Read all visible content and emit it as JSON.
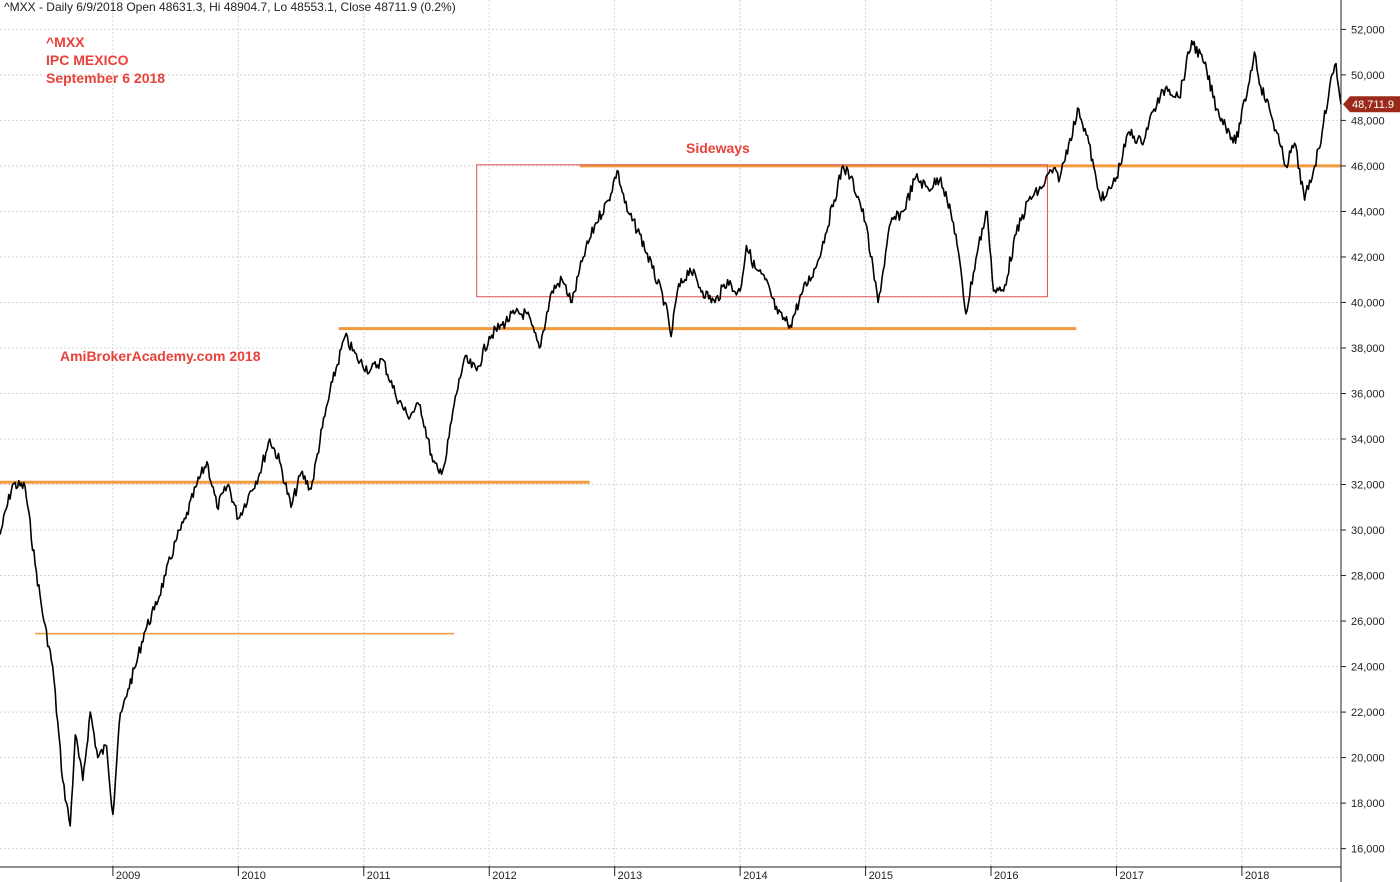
{
  "header": {
    "text": "^MXX - Daily 6/9/2018 Open 48631.3, Hi 48904.7, Lo 48553.1, Close 48711.9 (0.2%)"
  },
  "annotations": {
    "symbol": "^MXX",
    "name": "IPC MEXICO",
    "date": "September 6 2018",
    "watermark": "AmiBrokerAcademy.com  2018",
    "sideways": "Sideways"
  },
  "colors": {
    "price": "#000000",
    "support": "#f29a3c",
    "box": "#e05050",
    "annotation": "#e8413a",
    "grid": "#d4d4d4",
    "badge": "#9b2a1a"
  },
  "chart_data": {
    "type": "line",
    "title": "",
    "xlabel": "",
    "ylabel": "",
    "ylim": [
      15500,
      52500
    ],
    "x_tick_labels": [
      "2009",
      "2010",
      "2011",
      "2012",
      "2013",
      "2014",
      "2015",
      "2016",
      "2017",
      "2018"
    ],
    "y_tick_labels": [
      "16,000",
      "18,000",
      "20,000",
      "22,000",
      "24,000",
      "26,000",
      "28,000",
      "30,000",
      "32,000",
      "34,000",
      "36,000",
      "38,000",
      "40,000",
      "42,000",
      "44,000",
      "46,000",
      "48,000",
      "50,000",
      "52,000"
    ],
    "y_ticks": [
      16000,
      18000,
      20000,
      22000,
      24000,
      26000,
      28000,
      30000,
      32000,
      34000,
      36000,
      38000,
      40000,
      42000,
      44000,
      46000,
      48000,
      50000,
      52000
    ],
    "x_range": [
      2008.1,
      2018.79
    ],
    "last_value_label": "48,711.9",
    "last_value": 48711.9,
    "series": [
      {
        "x": [
          2008.1,
          2008.2,
          2008.3,
          2008.38,
          2008.45,
          2008.52,
          2008.6,
          2008.66,
          2008.7,
          2008.76,
          2008.82,
          2008.88,
          2008.95,
          2009.0,
          2009.05,
          2009.12,
          2009.18,
          2009.25,
          2009.33,
          2009.42,
          2009.5,
          2009.58,
          2009.67,
          2009.75,
          2009.83,
          2009.92,
          2010.0,
          2010.08,
          2010.17,
          2010.25,
          2010.33,
          2010.42,
          2010.5,
          2010.58,
          2010.67,
          2010.75,
          2010.85,
          2010.95,
          2011.05,
          2011.15,
          2011.25,
          2011.35,
          2011.45,
          2011.55,
          2011.6,
          2011.65,
          2011.72,
          2011.8,
          2011.9,
          2012.0,
          2012.1,
          2012.2,
          2012.3,
          2012.4,
          2012.5,
          2012.58,
          2012.66,
          2012.75,
          2012.85,
          2012.95,
          2013.02,
          2013.1,
          2013.2,
          2013.3,
          2013.4,
          2013.45,
          2013.5,
          2013.6,
          2013.7,
          2013.8,
          2013.9,
          2013.95,
          2014.0,
          2014.05,
          2014.12,
          2014.2,
          2014.3,
          2014.4,
          2014.5,
          2014.6,
          2014.68,
          2014.75,
          2014.82,
          2014.88,
          2014.95,
          2015.0,
          2015.1,
          2015.2,
          2015.3,
          2015.4,
          2015.5,
          2015.6,
          2015.65,
          2015.72,
          2015.8,
          2015.9,
          2015.97,
          2016.02,
          2016.1,
          2016.2,
          2016.3,
          2016.4,
          2016.48,
          2016.55,
          2016.62,
          2016.7,
          2016.78,
          2016.85,
          2016.9,
          2017.0,
          2017.1,
          2017.2,
          2017.3,
          2017.4,
          2017.5,
          2017.6,
          2017.7,
          2017.8,
          2017.9,
          2017.95,
          2018.05,
          2018.1,
          2018.15,
          2018.22,
          2018.3,
          2018.35,
          2018.42,
          2018.5,
          2018.58,
          2018.64,
          2018.7,
          2018.75,
          2018.79
        ],
        "y": [
          29800,
          32000,
          31900,
          28500,
          26000,
          24000,
          19000,
          17000,
          21000,
          19000,
          22000,
          20000,
          20500,
          17500,
          21500,
          23000,
          24000,
          25500,
          26500,
          28000,
          29500,
          30500,
          32000,
          33000,
          31000,
          32000,
          30500,
          31500,
          32500,
          34000,
          33000,
          31000,
          32500,
          31800,
          34500,
          36500,
          38500,
          37500,
          37000,
          37500,
          36000,
          35000,
          35500,
          33000,
          32500,
          33000,
          35500,
          37500,
          37000,
          38500,
          39000,
          39500,
          39500,
          38000,
          40500,
          41000,
          40000,
          42000,
          43500,
          44500,
          45800,
          44000,
          43000,
          41500,
          40000,
          38500,
          40500,
          41500,
          40500,
          40000,
          41000,
          40500,
          40500,
          42500,
          41500,
          41000,
          39500,
          39000,
          40500,
          41500,
          43000,
          44500,
          46000,
          45500,
          44500,
          43500,
          40000,
          43500,
          44000,
          45500,
          45000,
          45500,
          44500,
          43000,
          39500,
          42500,
          44000,
          40500,
          40500,
          43000,
          44500,
          45000,
          45800,
          45500,
          47000,
          48500,
          47000,
          45000,
          44500,
          45500,
          47500,
          47000,
          48500,
          49500,
          49000,
          51500,
          50500,
          48500,
          47500,
          47000,
          49500,
          51000,
          49500,
          48500,
          47000,
          46000,
          47000,
          44500,
          46000,
          47500,
          49500,
          50500,
          48711.9
        ]
      }
    ],
    "levels": [
      {
        "name": "support-32000",
        "value": 32100,
        "x": [
          2008.1,
          2012.8
        ]
      },
      {
        "name": "level-25400",
        "value": 25450,
        "x": [
          2008.38,
          2011.72
        ]
      },
      {
        "name": "support-38900",
        "value": 38850,
        "x": [
          2010.8,
          2016.68
        ]
      },
      {
        "name": "resistance-46000",
        "value": 46000,
        "x": [
          2012.72,
          2018.79
        ]
      }
    ],
    "range_box": {
      "x": [
        2011.9,
        2016.45
      ],
      "y": [
        40250,
        46050
      ]
    },
    "grid": true
  }
}
